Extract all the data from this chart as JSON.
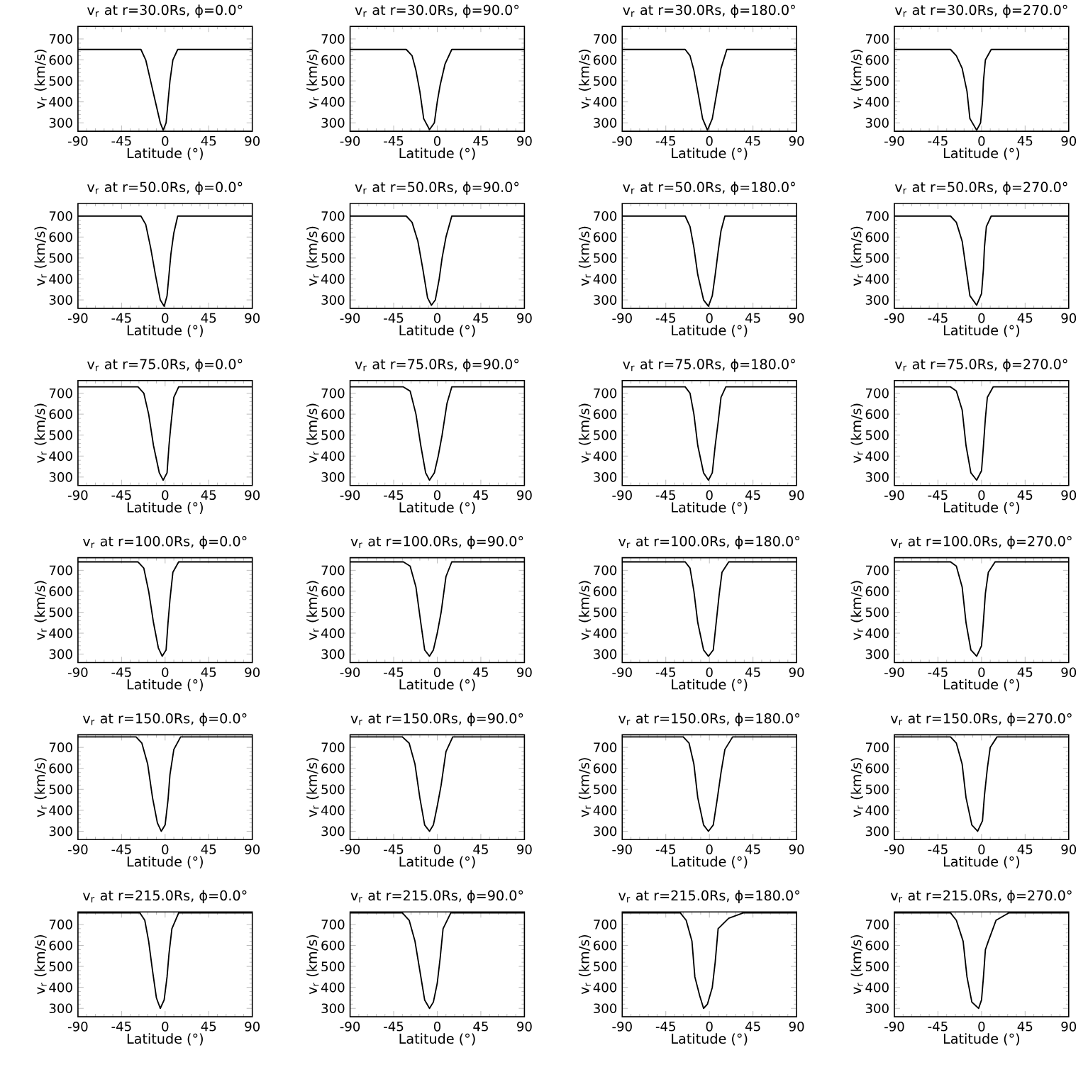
{
  "chart_data": [
    {
      "type": "line",
      "title": "v$_{r}$ at r=30.0Rs, ϕ=0.0°",
      "xlabel": "Latitude (°)",
      "ylabel": "v$_{r}$ (km/s)",
      "xlim": [
        -90,
        90
      ],
      "ylim": [
        260,
        760
      ],
      "xticks": [
        -90,
        -45,
        0,
        45,
        90
      ],
      "yticks": [
        300,
        400,
        500,
        600,
        700
      ],
      "x": [
        -90,
        -25,
        -20,
        -15,
        -10,
        -5,
        -2,
        1,
        3,
        5,
        8,
        13,
        90
      ],
      "values": [
        650,
        650,
        600,
        500,
        400,
        300,
        265,
        300,
        400,
        500,
        600,
        650,
        650
      ]
    },
    {
      "type": "line",
      "title": "v$_{r}$ at r=30.0Rs, ϕ=90.0°",
      "xlabel": "Latitude (°)",
      "ylabel": "v$_{r}$ (km/s)",
      "xlim": [
        -90,
        90
      ],
      "ylim": [
        260,
        760
      ],
      "xticks": [
        -90,
        -45,
        0,
        45,
        90
      ],
      "yticks": [
        300,
        400,
        500,
        600,
        700
      ],
      "x": [
        -90,
        -32,
        -26,
        -22,
        -18,
        -14,
        -8,
        -3,
        0,
        3,
        8,
        15,
        90
      ],
      "values": [
        650,
        650,
        620,
        550,
        450,
        320,
        268,
        300,
        400,
        480,
        580,
        650,
        650
      ]
    },
    {
      "type": "line",
      "title": "v$_{r}$ at r=30.0Rs, ϕ=180.0°",
      "xlabel": "Latitude (°)",
      "ylabel": "v$_{r}$ (km/s)",
      "xlim": [
        -90,
        90
      ],
      "ylim": [
        260,
        760
      ],
      "xticks": [
        -90,
        -45,
        0,
        45,
        90
      ],
      "yticks": [
        300,
        400,
        500,
        600,
        700
      ],
      "x": [
        -90,
        -25,
        -20,
        -16,
        -12,
        -7,
        -2,
        3,
        6,
        9,
        12,
        18,
        90
      ],
      "values": [
        650,
        650,
        620,
        550,
        450,
        320,
        265,
        320,
        400,
        480,
        560,
        650,
        650
      ]
    },
    {
      "type": "line",
      "title": "v$_{r}$ at r=30.0Rs, ϕ=270.0°",
      "xlabel": "Latitude (°)",
      "ylabel": "v$_{r}$ (km/s)",
      "xlim": [
        -90,
        90
      ],
      "ylim": [
        260,
        760
      ],
      "xticks": [
        -90,
        -45,
        0,
        45,
        90
      ],
      "yticks": [
        300,
        400,
        500,
        600,
        700
      ],
      "x": [
        -90,
        -32,
        -26,
        -20,
        -15,
        -12,
        -5,
        -1,
        1,
        2,
        4,
        10,
        90
      ],
      "values": [
        650,
        650,
        620,
        560,
        450,
        320,
        265,
        300,
        400,
        500,
        600,
        650,
        650
      ]
    },
    {
      "type": "line",
      "title": "v$_{r}$ at r=50.0Rs, ϕ=0.0°",
      "xlabel": "Latitude (°)",
      "ylabel": "v$_{r}$ (km/s)",
      "xlim": [
        -90,
        90
      ],
      "ylim": [
        260,
        760
      ],
      "xticks": [
        -90,
        -45,
        0,
        45,
        90
      ],
      "yticks": [
        300,
        400,
        500,
        600,
        700
      ],
      "x": [
        -90,
        -25,
        -20,
        -15,
        -10,
        -5,
        -1,
        2,
        4,
        6,
        9,
        13,
        90
      ],
      "values": [
        700,
        700,
        660,
        550,
        420,
        300,
        270,
        320,
        420,
        520,
        620,
        700,
        700
      ]
    },
    {
      "type": "line",
      "title": "v$_{r}$ at r=50.0Rs, ϕ=90.0°",
      "xlabel": "Latitude (°)",
      "ylabel": "v$_{r}$ (km/s)",
      "xlim": [
        -90,
        90
      ],
      "ylim": [
        260,
        760
      ],
      "xticks": [
        -90,
        -45,
        0,
        45,
        90
      ],
      "yticks": [
        300,
        400,
        500,
        600,
        700
      ],
      "x": [
        -90,
        -32,
        -26,
        -20,
        -15,
        -10,
        -6,
        -2,
        2,
        5,
        9,
        15,
        90
      ],
      "values": [
        700,
        700,
        670,
        580,
        450,
        310,
        275,
        300,
        400,
        500,
        600,
        700,
        700
      ]
    },
    {
      "type": "line",
      "title": "v$_{r}$ at r=50.0Rs, ϕ=180.0°",
      "xlabel": "Latitude (°)",
      "ylabel": "v$_{r}$ (km/s)",
      "xlim": [
        -90,
        90
      ],
      "ylim": [
        260,
        760
      ],
      "xticks": [
        -90,
        -45,
        0,
        45,
        90
      ],
      "yticks": [
        300,
        400,
        500,
        600,
        700
      ],
      "x": [
        -90,
        -25,
        -20,
        -16,
        -12,
        -6,
        -1,
        3,
        6,
        9,
        12,
        16,
        90
      ],
      "values": [
        700,
        700,
        650,
        550,
        420,
        300,
        270,
        320,
        420,
        530,
        630,
        700,
        700
      ]
    },
    {
      "type": "line",
      "title": "v$_{r}$ at r=50.0Rs, ϕ=270.0°",
      "xlabel": "Latitude (°)",
      "ylabel": "v$_{r}$ (km/s)",
      "xlim": [
        -90,
        90
      ],
      "ylim": [
        260,
        760
      ],
      "xticks": [
        -90,
        -45,
        0,
        45,
        90
      ],
      "yticks": [
        300,
        400,
        500,
        600,
        700
      ],
      "x": [
        -90,
        -32,
        -26,
        -20,
        -16,
        -12,
        -5,
        0,
        2,
        3,
        5,
        10,
        90
      ],
      "values": [
        700,
        700,
        670,
        580,
        450,
        320,
        275,
        330,
        450,
        550,
        650,
        700,
        700
      ]
    },
    {
      "type": "line",
      "title": "v$_{r}$ at r=75.0Rs, ϕ=0.0°",
      "xlabel": "Latitude (°)",
      "ylabel": "v$_{r}$ (km/s)",
      "xlim": [
        -90,
        90
      ],
      "ylim": [
        260,
        760
      ],
      "xticks": [
        -90,
        -45,
        0,
        45,
        90
      ],
      "yticks": [
        300,
        400,
        500,
        600,
        700
      ],
      "x": [
        -90,
        -28,
        -22,
        -17,
        -12,
        -6,
        -2,
        2,
        4,
        6,
        9,
        14,
        90
      ],
      "values": [
        730,
        730,
        700,
        600,
        450,
        320,
        285,
        320,
        450,
        550,
        680,
        730,
        730
      ]
    },
    {
      "type": "line",
      "title": "v$_{r}$ at r=75.0Rs, ϕ=90.0°",
      "xlabel": "Latitude (°)",
      "ylabel": "v$_{r}$ (km/s)",
      "xlim": [
        -90,
        90
      ],
      "ylim": [
        260,
        760
      ],
      "xticks": [
        -90,
        -45,
        0,
        45,
        90
      ],
      "yticks": [
        300,
        400,
        500,
        600,
        700
      ],
      "x": [
        -90,
        -35,
        -28,
        -22,
        -17,
        -12,
        -8,
        -3,
        1,
        5,
        10,
        15,
        90
      ],
      "values": [
        730,
        730,
        710,
        600,
        450,
        320,
        285,
        320,
        400,
        500,
        650,
        730,
        730
      ]
    },
    {
      "type": "line",
      "title": "v$_{r}$ at r=75.0Rs, ϕ=180.0°",
      "xlabel": "Latitude (°)",
      "ylabel": "v$_{r}$ (km/s)",
      "xlim": [
        -90,
        90
      ],
      "ylim": [
        260,
        760
      ],
      "xticks": [
        -90,
        -45,
        0,
        45,
        90
      ],
      "yticks": [
        300,
        400,
        500,
        600,
        700
      ],
      "x": [
        -90,
        -25,
        -20,
        -16,
        -12,
        -6,
        -1,
        3,
        6,
        9,
        12,
        17,
        90
      ],
      "values": [
        730,
        730,
        700,
        600,
        450,
        320,
        285,
        320,
        450,
        560,
        680,
        730,
        730
      ]
    },
    {
      "type": "line",
      "title": "v$_{r}$ at r=75.0Rs, ϕ=270.0°",
      "xlabel": "Latitude (°)",
      "ylabel": "v$_{r}$ (km/s)",
      "xlim": [
        -90,
        90
      ],
      "ylim": [
        260,
        760
      ],
      "xticks": [
        -90,
        -45,
        0,
        45,
        90
      ],
      "yticks": [
        300,
        400,
        500,
        600,
        700
      ],
      "x": [
        -90,
        -32,
        -26,
        -20,
        -16,
        -11,
        -5,
        0,
        2,
        4,
        6,
        12,
        90
      ],
      "values": [
        730,
        730,
        710,
        620,
        450,
        320,
        285,
        330,
        450,
        580,
        680,
        730,
        730
      ]
    },
    {
      "type": "line",
      "title": "v$_{r}$ at r=100.0Rs, ϕ=0.0°",
      "xlabel": "Latitude (°)",
      "ylabel": "v$_{r}$ (km/s)",
      "xlim": [
        -90,
        90
      ],
      "ylim": [
        260,
        760
      ],
      "xticks": [
        -90,
        -45,
        0,
        45,
        90
      ],
      "yticks": [
        300,
        400,
        500,
        600,
        700
      ],
      "x": [
        -90,
        -28,
        -22,
        -17,
        -12,
        -7,
        -3,
        1,
        3,
        5,
        8,
        14,
        90
      ],
      "values": [
        740,
        740,
        710,
        600,
        450,
        330,
        290,
        320,
        450,
        560,
        690,
        740,
        740
      ]
    },
    {
      "type": "line",
      "title": "v$_{r}$ at r=100.0Rs, ϕ=90.0°",
      "xlabel": "Latitude (°)",
      "ylabel": "v$_{r}$ (km/s)",
      "xlim": [
        -90,
        90
      ],
      "ylim": [
        260,
        760
      ],
      "xticks": [
        -90,
        -45,
        0,
        45,
        90
      ],
      "yticks": [
        300,
        400,
        500,
        600,
        700
      ],
      "x": [
        -90,
        -35,
        -28,
        -22,
        -17,
        -13,
        -8,
        -4,
        0,
        4,
        9,
        15,
        90
      ],
      "values": [
        740,
        740,
        720,
        620,
        450,
        320,
        290,
        320,
        400,
        500,
        670,
        740,
        740
      ]
    },
    {
      "type": "line",
      "title": "v$_{r}$ at r=100.0Rs, ϕ=180.0°",
      "xlabel": "Latitude (°)",
      "ylabel": "v$_{r}$ (km/s)",
      "xlim": [
        -90,
        90
      ],
      "ylim": [
        260,
        760
      ],
      "xticks": [
        -90,
        -45,
        0,
        45,
        90
      ],
      "yticks": [
        300,
        400,
        500,
        600,
        700
      ],
      "x": [
        -90,
        -25,
        -20,
        -16,
        -12,
        -6,
        -1,
        4,
        7,
        10,
        13,
        20,
        90
      ],
      "values": [
        740,
        740,
        710,
        600,
        450,
        320,
        290,
        320,
        450,
        580,
        690,
        740,
        740
      ]
    },
    {
      "type": "line",
      "title": "v$_{r}$ at r=100.0Rs, ϕ=270.0°",
      "xlabel": "Latitude (°)",
      "ylabel": "v$_{r}$ (km/s)",
      "xlim": [
        -90,
        90
      ],
      "ylim": [
        260,
        760
      ],
      "xticks": [
        -90,
        -45,
        0,
        45,
        90
      ],
      "yticks": [
        300,
        400,
        500,
        600,
        700
      ],
      "x": [
        -90,
        -32,
        -26,
        -20,
        -16,
        -11,
        -5,
        0,
        2,
        4,
        7,
        14,
        90
      ],
      "values": [
        740,
        740,
        720,
        620,
        450,
        320,
        290,
        340,
        460,
        590,
        690,
        740,
        740
      ]
    },
    {
      "type": "line",
      "title": "v$_{r}$ at r=150.0Rs, ϕ=0.0°",
      "xlabel": "Latitude (°)",
      "ylabel": "v$_{r}$ (km/s)",
      "xlim": [
        -90,
        90
      ],
      "ylim": [
        260,
        760
      ],
      "xticks": [
        -90,
        -45,
        0,
        45,
        90
      ],
      "yticks": [
        300,
        400,
        500,
        600,
        700
      ],
      "x": [
        -90,
        -30,
        -24,
        -18,
        -13,
        -8,
        -4,
        0,
        3,
        5,
        9,
        16,
        90
      ],
      "values": [
        750,
        750,
        720,
        620,
        460,
        340,
        300,
        330,
        450,
        570,
        690,
        750,
        750
      ]
    },
    {
      "type": "line",
      "title": "v$_{r}$ at r=150.0Rs, ϕ=90.0°",
      "xlabel": "Latitude (°)",
      "ylabel": "v$_{r}$ (km/s)",
      "xlim": [
        -90,
        90
      ],
      "ylim": [
        260,
        760
      ],
      "xticks": [
        -90,
        -45,
        0,
        45,
        90
      ],
      "yticks": [
        300,
        400,
        500,
        600,
        700
      ],
      "x": [
        -90,
        -36,
        -29,
        -23,
        -18,
        -13,
        -8,
        -4,
        0,
        4,
        9,
        16,
        90
      ],
      "values": [
        750,
        750,
        720,
        620,
        460,
        330,
        300,
        330,
        420,
        520,
        680,
        750,
        750
      ]
    },
    {
      "type": "line",
      "title": "v$_{r}$ at r=150.0Rs, ϕ=180.0°",
      "xlabel": "Latitude (°)",
      "ylabel": "v$_{r}$ (km/s)",
      "xlim": [
        -90,
        90
      ],
      "ylim": [
        260,
        760
      ],
      "xticks": [
        -90,
        -45,
        0,
        45,
        90
      ],
      "yticks": [
        300,
        400,
        500,
        600,
        700
      ],
      "x": [
        -90,
        -27,
        -21,
        -16,
        -12,
        -6,
        -1,
        4,
        8,
        12,
        16,
        24,
        90
      ],
      "values": [
        750,
        750,
        720,
        620,
        460,
        330,
        300,
        330,
        450,
        580,
        690,
        750,
        750
      ]
    },
    {
      "type": "line",
      "title": "v$_{r}$ at r=150.0Rs, ϕ=270.0°",
      "xlabel": "Latitude (°)",
      "ylabel": "v$_{r}$ (km/s)",
      "xlim": [
        -90,
        90
      ],
      "ylim": [
        260,
        760
      ],
      "xticks": [
        -90,
        -45,
        0,
        45,
        90
      ],
      "yticks": [
        300,
        400,
        500,
        600,
        700
      ],
      "x": [
        -90,
        -32,
        -26,
        -20,
        -16,
        -10,
        -4,
        1,
        3,
        6,
        9,
        16,
        90
      ],
      "values": [
        750,
        750,
        720,
        620,
        460,
        330,
        300,
        350,
        470,
        600,
        700,
        750,
        750
      ]
    },
    {
      "type": "line",
      "title": "v$_{r}$ at r=215.0Rs, ϕ=0.0°",
      "xlabel": "Latitude (°)",
      "ylabel": "v$_{r}$ (km/s)",
      "xlim": [
        -90,
        90
      ],
      "ylim": [
        260,
        760
      ],
      "xticks": [
        -90,
        -45,
        0,
        45,
        90
      ],
      "yticks": [
        300,
        400,
        500,
        600,
        700
      ],
      "x": [
        -90,
        -26,
        -21,
        -17,
        -13,
        -9,
        -5,
        -1,
        2,
        4,
        7,
        14,
        90
      ],
      "values": [
        755,
        755,
        720,
        620,
        480,
        350,
        300,
        340,
        450,
        560,
        680,
        755,
        755
      ]
    },
    {
      "type": "line",
      "title": "v$_{r}$ at r=215.0Rs, ϕ=90.0°",
      "xlabel": "Latitude (°)",
      "ylabel": "v$_{r}$ (km/s)",
      "xlim": [
        -90,
        90
      ],
      "ylim": [
        260,
        760
      ],
      "xticks": [
        -90,
        -45,
        0,
        45,
        90
      ],
      "yticks": [
        300,
        400,
        500,
        600,
        700
      ],
      "x": [
        -90,
        -36,
        -29,
        -23,
        -18,
        -13,
        -8,
        -4,
        0,
        3,
        6,
        14,
        90
      ],
      "values": [
        755,
        755,
        720,
        620,
        480,
        340,
        300,
        330,
        420,
        540,
        680,
        755,
        755
      ]
    },
    {
      "type": "line",
      "title": "v$_{r}$ at r=215.0Rs, ϕ=180.0°",
      "xlabel": "Latitude (°)",
      "ylabel": "v$_{r}$ (km/s)",
      "xlim": [
        -90,
        90
      ],
      "ylim": [
        260,
        760
      ],
      "xticks": [
        -90,
        -45,
        0,
        45,
        90
      ],
      "yticks": [
        300,
        400,
        500,
        600,
        700
      ],
      "x": [
        -90,
        -30,
        -24,
        -18,
        -15,
        -10,
        -6,
        -2,
        3,
        6,
        9,
        20,
        35,
        90
      ],
      "values": [
        755,
        755,
        720,
        620,
        450,
        360,
        300,
        320,
        400,
        520,
        680,
        730,
        755,
        755
      ]
    },
    {
      "type": "line",
      "title": "v$_{r}$ at r=215.0Rs, ϕ=270.0°",
      "xlabel": "Latitude (°)",
      "ylabel": "v$_{r}$ (km/s)",
      "xlim": [
        -90,
        90
      ],
      "ylim": [
        260,
        760
      ],
      "xticks": [
        -90,
        -45,
        0,
        45,
        90
      ],
      "yticks": [
        300,
        400,
        500,
        600,
        700
      ],
      "x": [
        -90,
        -32,
        -26,
        -19,
        -15,
        -10,
        -3,
        0,
        2,
        4,
        7,
        15,
        28,
        90
      ],
      "values": [
        755,
        755,
        720,
        620,
        450,
        330,
        300,
        340,
        450,
        580,
        620,
        720,
        755,
        755
      ]
    }
  ]
}
